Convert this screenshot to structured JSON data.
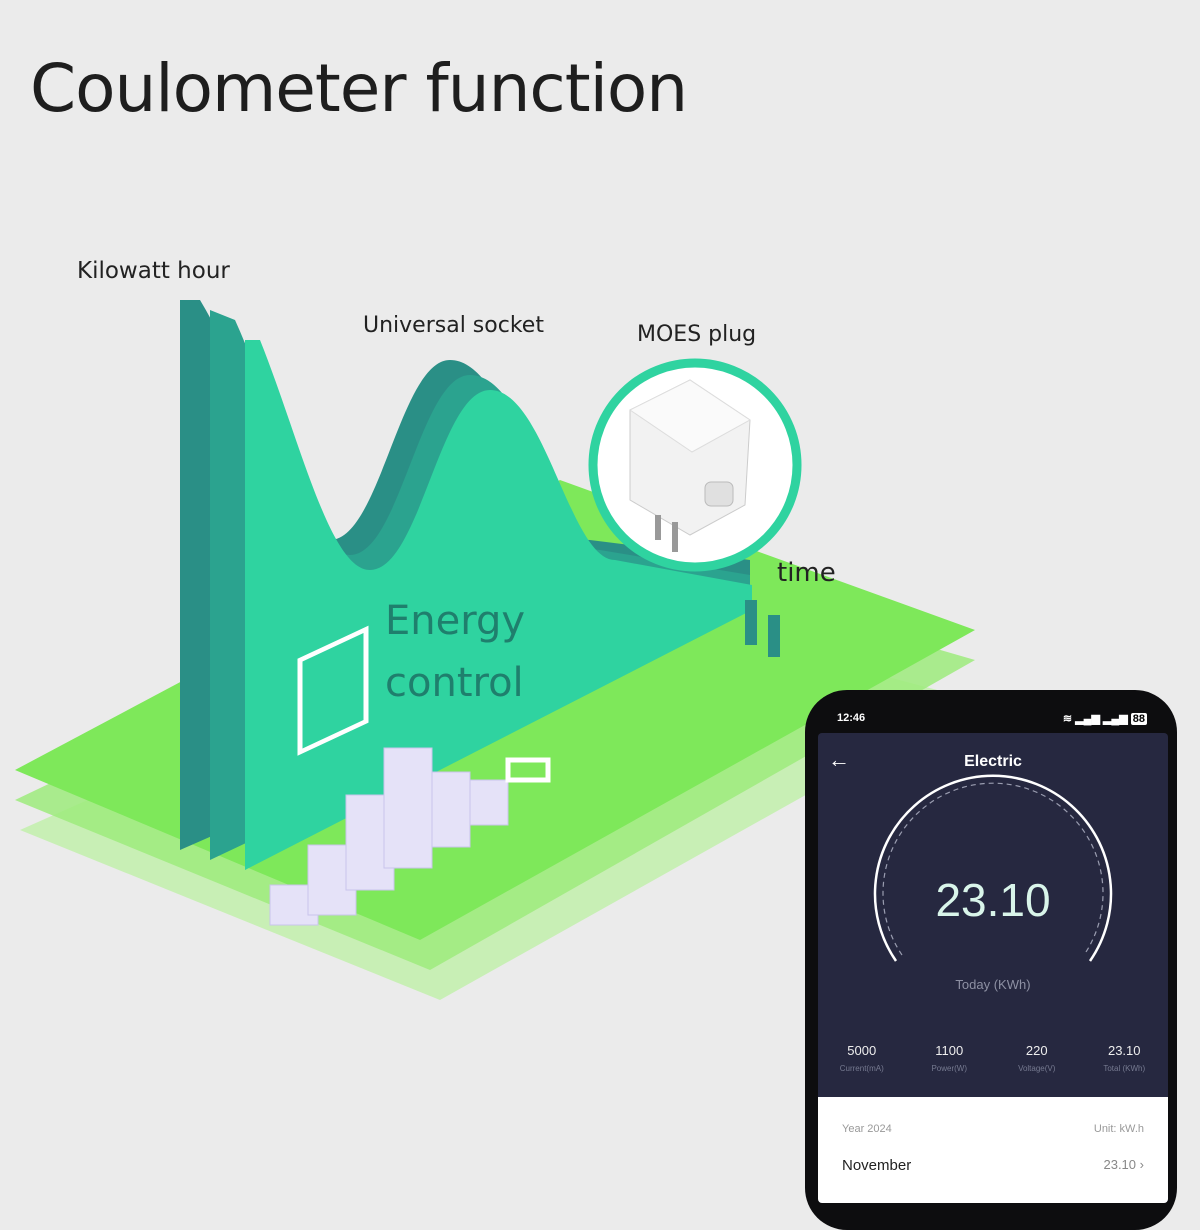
{
  "title": "Coulometer function",
  "labels": {
    "kilowatt_hour": "Kilowatt hour",
    "universal_socket": "Universal socket",
    "moes_plug": "MOES plug",
    "time": "time",
    "energy": "Energy",
    "control": "control"
  },
  "colors": {
    "plane": "#7ee85a",
    "wave": "#2fd3a0",
    "wave_dark": "#2a8f86",
    "phone_screen": "#262840"
  },
  "phone": {
    "status": {
      "time": "12:46",
      "battery": "88",
      "icons": [
        "wifi-icon",
        "signal-icon",
        "signal-icon",
        "battery-icon"
      ]
    },
    "header": {
      "back_icon": "arrow-left-icon",
      "title": "Electric"
    },
    "gauge": {
      "value": "23.10",
      "label": "Today (KWh)"
    },
    "stats": [
      {
        "value": "5000",
        "label": "Current(mA)"
      },
      {
        "value": "1100",
        "label": "Power(W)"
      },
      {
        "value": "220",
        "label": "Voltage(V)"
      },
      {
        "value": "23.10",
        "label": "Total (KWh)"
      }
    ],
    "history": {
      "year": "Year 2024",
      "unit": "Unit: kW.h",
      "month": "November",
      "month_value": "23.10"
    }
  }
}
